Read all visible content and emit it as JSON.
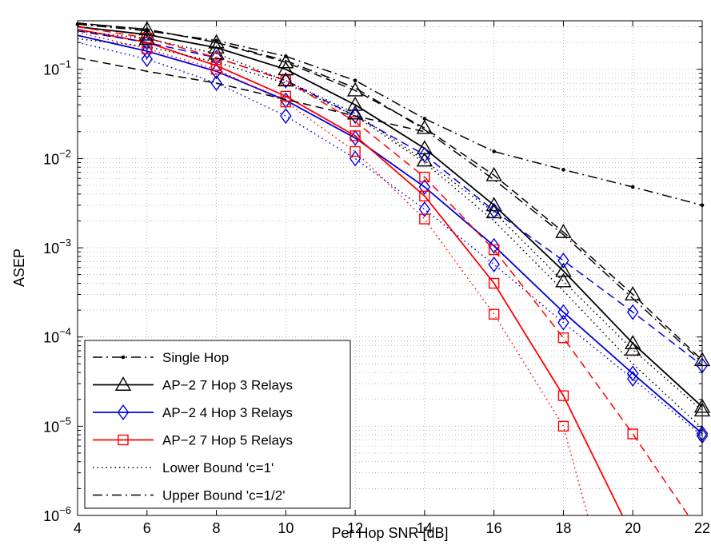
{
  "chart_data": {
    "type": "line",
    "xlabel": "Per Hop SNR [dB]",
    "ylabel": "ASEP",
    "xlim": [
      4,
      22
    ],
    "ylim": [
      1e-06,
      0.35
    ],
    "yscale": "log",
    "grid": true,
    "legend_position": "bottom-left",
    "x_ticks": [
      4,
      6,
      8,
      10,
      12,
      14,
      16,
      18,
      20,
      22
    ],
    "y_ticks": [
      {
        "value": 1e-06,
        "mantissa": "10",
        "exp": "−6"
      },
      {
        "value": 1e-05,
        "mantissa": "10",
        "exp": "−5"
      },
      {
        "value": 0.0001,
        "mantissa": "10",
        "exp": "−4"
      },
      {
        "value": 0.001,
        "mantissa": "10",
        "exp": "−3"
      },
      {
        "value": 0.01,
        "mantissa": "10",
        "exp": "−2"
      },
      {
        "value": 0.1,
        "mantissa": "10",
        "exp": "−1"
      }
    ],
    "series": [
      {
        "name": "Single Hop",
        "color": "#000000",
        "style": "dash-dot-marker",
        "marker": "point",
        "x": [
          4,
          6,
          8,
          10,
          12,
          14,
          16,
          18,
          20,
          22
        ],
        "y": [
          0.32,
          0.27,
          0.21,
          0.14,
          0.075,
          0.028,
          0.012,
          0.0075,
          0.0048,
          0.003
        ]
      },
      {
        "name": "AP−2 7 Hop 3 Relays",
        "color": "#000000",
        "style": "solid",
        "marker": "triangle",
        "x": [
          4,
          6,
          8,
          10,
          12,
          14,
          16,
          18,
          20,
          22
        ],
        "y": [
          0.3,
          0.245,
          0.175,
          0.1,
          0.04,
          0.013,
          0.003,
          0.00055,
          8.5e-05,
          1.65e-05
        ]
      },
      {
        "name": "AP−2 4 Hop 3 Relays",
        "color": "#0000dd",
        "style": "solid",
        "marker": "diamond",
        "x": [
          4,
          6,
          8,
          10,
          12,
          14,
          16,
          18,
          20,
          22
        ],
        "y": [
          0.24,
          0.16,
          0.095,
          0.045,
          0.017,
          0.0048,
          0.00105,
          0.00019,
          3.9e-05,
          8.3e-06
        ]
      },
      {
        "name": "AP−2 7 Hop 5 Relays",
        "color": "#ff0000",
        "style": "solid",
        "marker": "square",
        "x": [
          4,
          6,
          8,
          10,
          12,
          14,
          16,
          18,
          19.7
        ],
        "y": [
          0.28,
          0.2,
          0.11,
          0.05,
          0.018,
          0.0038,
          0.0004,
          2.2e-05,
          1e-06
        ]
      },
      {
        "name": "Lower Bound 'c=1'",
        "color": "#000000",
        "style": "dotted",
        "marker": "none",
        "x": [
          4,
          6,
          8,
          10,
          12,
          14,
          16,
          18,
          20,
          22
        ],
        "y": [
          0.22,
          0.18,
          0.12,
          0.07,
          0.03,
          0.009,
          0.002,
          0.00033,
          5e-05,
          9.5e-06
        ]
      },
      {
        "name": "Upper Bound 'c=1/2'",
        "color": "#000000",
        "style": "dash-dot",
        "marker": "none",
        "x": [
          4,
          6,
          8,
          10,
          12,
          14,
          16,
          18,
          20,
          22
        ],
        "y": [
          0.33,
          0.28,
          0.2,
          0.125,
          0.062,
          0.021,
          0.0058,
          0.0014,
          0.00027,
          5.2e-05
        ]
      },
      {
        "name": "",
        "color": "#0000dd",
        "style": "dashed",
        "marker": "diamond",
        "in_legend": false,
        "x": [
          4,
          6,
          8,
          10,
          12,
          14,
          16,
          18,
          20,
          22
        ],
        "y": [
          0.27,
          0.2,
          0.135,
          0.075,
          0.03,
          0.011,
          0.0026,
          0.00072,
          0.00019,
          4.8e-05
        ]
      },
      {
        "name": "",
        "color": "#0000dd",
        "style": "dotted",
        "marker": "diamond",
        "in_legend": false,
        "x": [
          4,
          6,
          8,
          10,
          12,
          14,
          16,
          18,
          20,
          22
        ],
        "y": [
          0.2,
          0.13,
          0.07,
          0.03,
          0.01,
          0.0027,
          0.00065,
          0.000145,
          3.4e-05,
          7.8e-06
        ]
      },
      {
        "name": "",
        "color": "#ff0000",
        "style": "dashed",
        "marker": "square",
        "in_legend": false,
        "x": [
          4,
          6,
          8,
          10,
          12,
          14,
          16,
          18,
          20,
          21.6
        ],
        "y": [
          0.3,
          0.225,
          0.135,
          0.075,
          0.026,
          0.0062,
          0.00095,
          9.8e-05,
          8.2e-06,
          1e-06
        ]
      },
      {
        "name": "",
        "color": "#ff0000",
        "style": "dotted",
        "marker": "square",
        "in_legend": false,
        "x": [
          4,
          6,
          8,
          10,
          12,
          14,
          16,
          18,
          18.7
        ],
        "y": [
          0.26,
          0.17,
          0.1,
          0.043,
          0.012,
          0.0021,
          0.00018,
          1e-05,
          1e-06
        ]
      },
      {
        "name": "",
        "color": "#000000",
        "style": "dashed",
        "marker": "triangle",
        "in_legend": false,
        "x": [
          4,
          6,
          8,
          10,
          12,
          14,
          16,
          18,
          20,
          22
        ],
        "y": [
          0.33,
          0.28,
          0.2,
          0.12,
          0.058,
          0.022,
          0.0065,
          0.0015,
          0.0003,
          5.5e-05
        ]
      },
      {
        "name": "",
        "color": "#000000",
        "style": "dotted",
        "marker": "triangle",
        "in_legend": false,
        "x": [
          4,
          6,
          8,
          10,
          12,
          14,
          16,
          18,
          20,
          22
        ],
        "y": [
          0.27,
          0.22,
          0.15,
          0.075,
          0.032,
          0.0095,
          0.0025,
          0.00042,
          7.2e-05,
          1.5e-05
        ]
      },
      {
        "name": "",
        "color": "#000000",
        "style": "dashed",
        "marker": "none",
        "in_legend": false,
        "x": [
          4,
          6,
          8,
          10,
          12,
          14
        ],
        "y": [
          0.135,
          0.095,
          0.07,
          0.046,
          0.03,
          0.02
        ]
      }
    ]
  }
}
